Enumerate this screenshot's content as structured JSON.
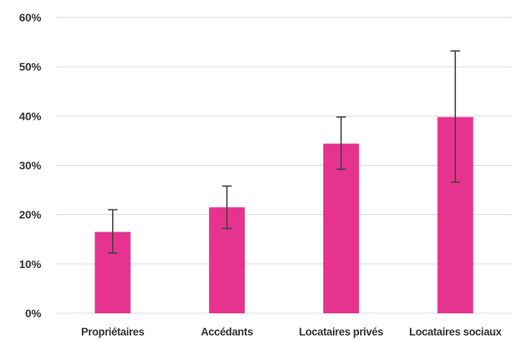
{
  "chart_data": {
    "type": "bar",
    "title": "",
    "xlabel": "",
    "ylabel": "",
    "categories": [
      "Propriétaires",
      "Accédants",
      "Locataires privés",
      "Locataires sociaux"
    ],
    "values": [
      16.5,
      21.5,
      34.4,
      39.8
    ],
    "error_low": [
      12.2,
      17.2,
      29.2,
      26.6
    ],
    "error_high": [
      21.0,
      25.8,
      39.8,
      53.2
    ],
    "unit": "%",
    "ylim": [
      0,
      60
    ],
    "yticks": [
      0,
      10,
      20,
      30,
      40,
      50,
      60
    ],
    "ytick_labels": [
      "0%",
      "10%",
      "20%",
      "30%",
      "40%",
      "50%",
      "60%"
    ],
    "grid": true,
    "legend": "none",
    "colors": {
      "bar": "#E6338F",
      "error_bar": "#404040",
      "grid": "#d9d9d9"
    }
  }
}
